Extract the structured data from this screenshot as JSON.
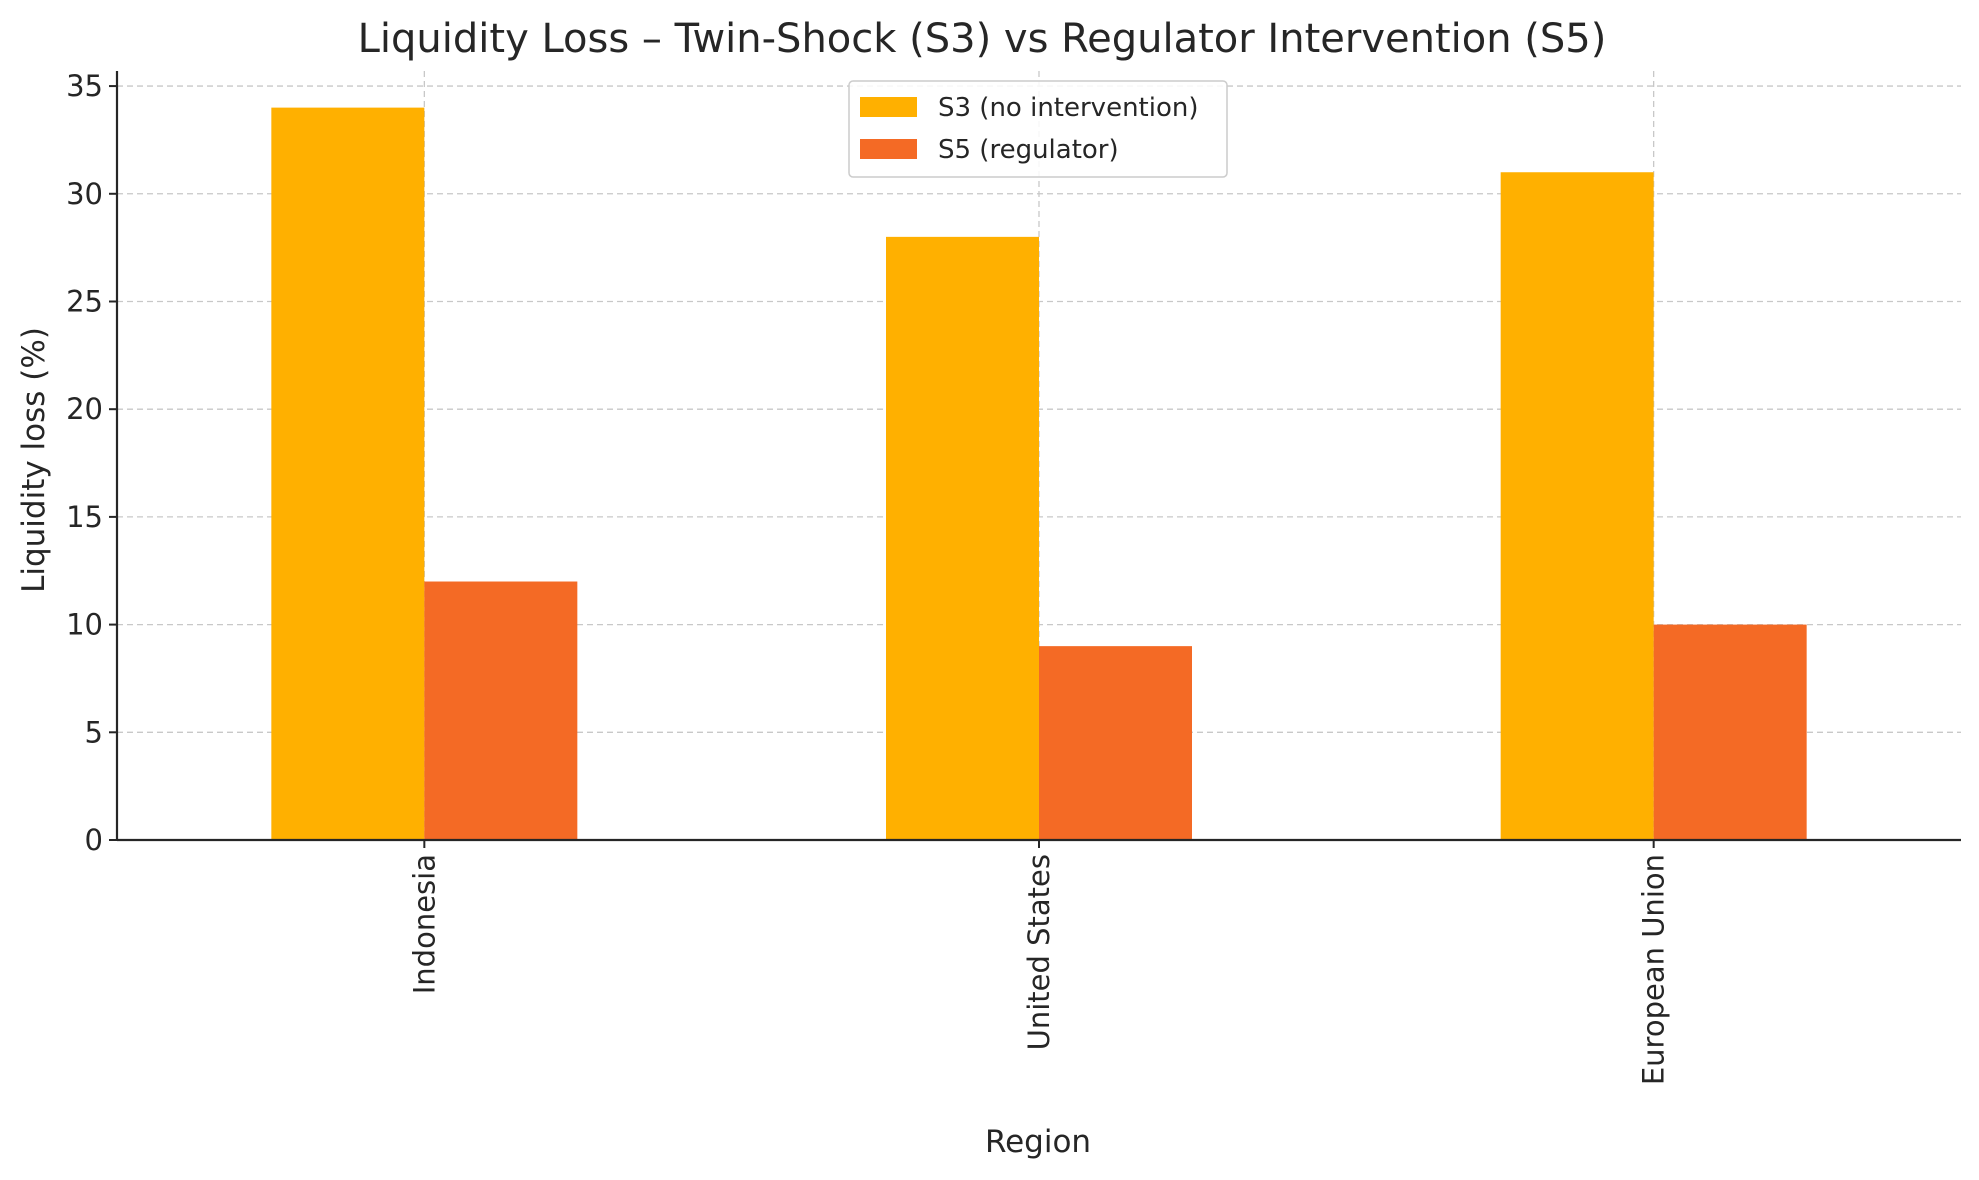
{
  "chart_data": {
    "type": "bar",
    "title": "Liquidity Loss – Twin-Shock (S3) vs Regulator Intervention (S5)",
    "xlabel": "Region",
    "ylabel": "Liquidity loss (%)",
    "categories": [
      "Indonesia",
      "United States",
      "European Union"
    ],
    "series": [
      {
        "name": "S3 (no intervention)",
        "values": [
          34,
          28,
          31
        ],
        "color": "#FFB000"
      },
      {
        "name": "S5 (regulator)",
        "values": [
          12,
          9,
          10
        ],
        "color": "#F46A25"
      }
    ],
    "ylim": [
      0,
      35.7
    ],
    "yticks": [
      0,
      5,
      10,
      15,
      20,
      25,
      30,
      35
    ],
    "grid": true,
    "legend_position": "top-center"
  }
}
